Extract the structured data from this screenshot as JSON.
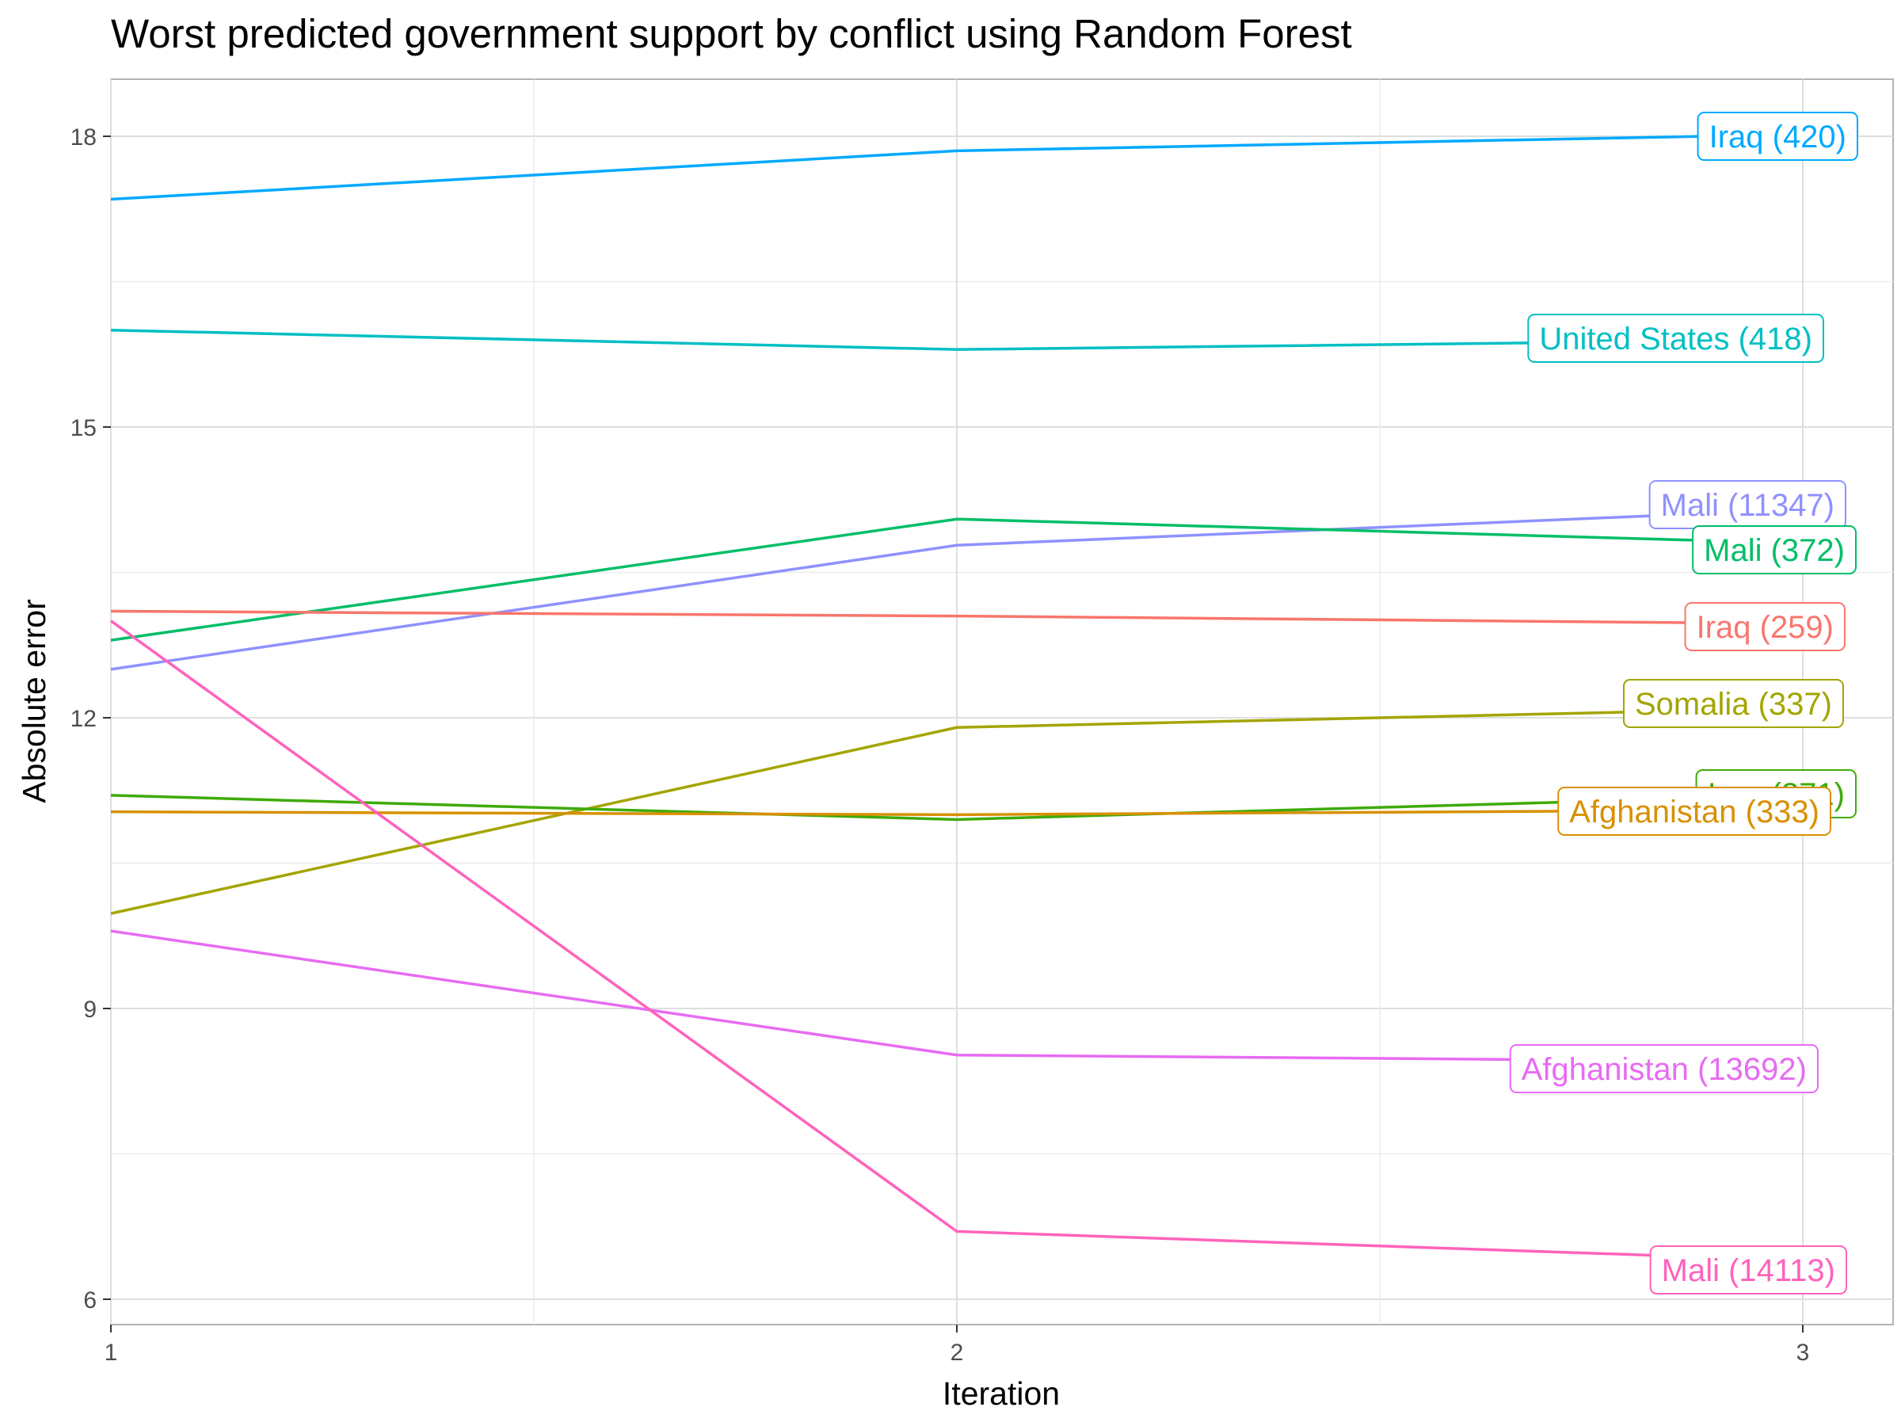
{
  "chart_data": {
    "type": "line",
    "title": "Worst predicted government support by conflict using Random Forest",
    "xlabel": "Iteration",
    "ylabel": "Absolute error",
    "x": [
      1,
      2,
      3
    ],
    "x_ticks": [
      "1",
      "2",
      "3"
    ],
    "y_ticks": [
      "6",
      "9",
      "12",
      "15",
      "18"
    ],
    "xlim": [
      1,
      3.08
    ],
    "ylim": [
      5.73,
      18.62
    ],
    "grid": true,
    "legend": "none (direct labels at line ends)",
    "series": [
      {
        "name": "Iraq (420)",
        "color": "#00A9FF",
        "values": [
          17.35,
          17.85,
          18.02
        ]
      },
      {
        "name": "United States (418)",
        "color": "#00BFC4",
        "values": [
          16.0,
          15.8,
          15.9
        ]
      },
      {
        "name": "Mali (11347)",
        "color": "#8F91FF",
        "values": [
          12.5,
          13.78,
          14.15
        ]
      },
      {
        "name": "Mali (372)",
        "color": "#00BE67",
        "values": [
          12.8,
          14.05,
          13.8
        ]
      },
      {
        "name": "Iraq (259)",
        "color": "#F8766D",
        "values": [
          13.1,
          13.05,
          12.97
        ]
      },
      {
        "name": "Somalia (337)",
        "color": "#A3A500",
        "values": [
          9.98,
          11.9,
          12.1
        ]
      },
      {
        "name": "Iraq (371)",
        "color": "#3DAB07",
        "values": [
          11.2,
          10.95,
          11.2
        ]
      },
      {
        "name": "Afghanistan (333)",
        "color": "#D89000",
        "values": [
          11.03,
          11.0,
          11.05
        ]
      },
      {
        "name": "Afghanistan (13692)",
        "color": "#E76BF3",
        "values": [
          9.8,
          8.52,
          8.45
        ]
      },
      {
        "name": "Mali (14113)",
        "color": "#FF62BC",
        "values": [
          13.0,
          6.7,
          6.4
        ]
      }
    ]
  }
}
